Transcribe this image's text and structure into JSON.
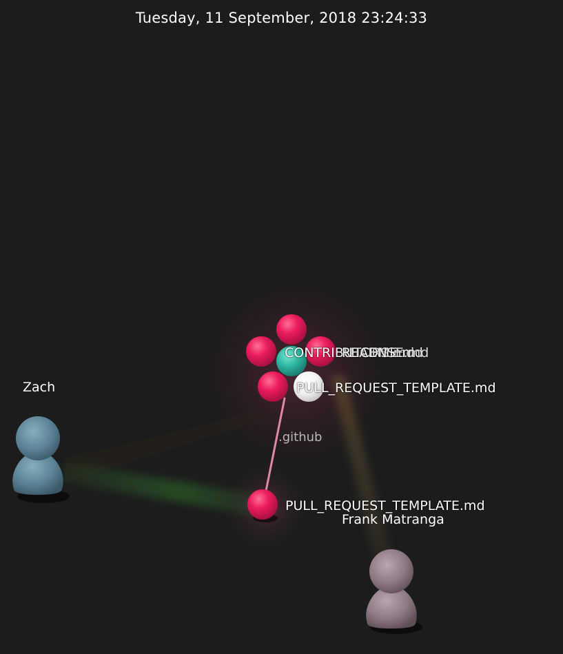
{
  "timestamp": "Tuesday, 11 September, 2018 23:24:33",
  "directory": ".github",
  "files": {
    "cluster_label_a": "CONTRIBUTORS.md",
    "cluster_label_b": "README.md",
    "cluster_label_c": "LICENSE.md",
    "template_near": "PULL_REQUEST_TEMPLATE.md",
    "template_far": "PULL_REQUEST_TEMPLATE.md"
  },
  "users": {
    "zach": "Zach",
    "frank": "Frank Matranga"
  },
  "colors": {
    "background": "#1c1c1c",
    "file_node": "#ec1d5c",
    "contributors_node": "#2fb7a2",
    "template_node": "#f2f0f3",
    "zach_avatar": "#5b8294",
    "frank_avatar": "#8d7885",
    "beam_zach": "#2f6d2c",
    "beam_frank": "#9a7a3a",
    "dir_edge": "#e08aa8"
  },
  "icons": [
    "user-avatar-icon"
  ]
}
